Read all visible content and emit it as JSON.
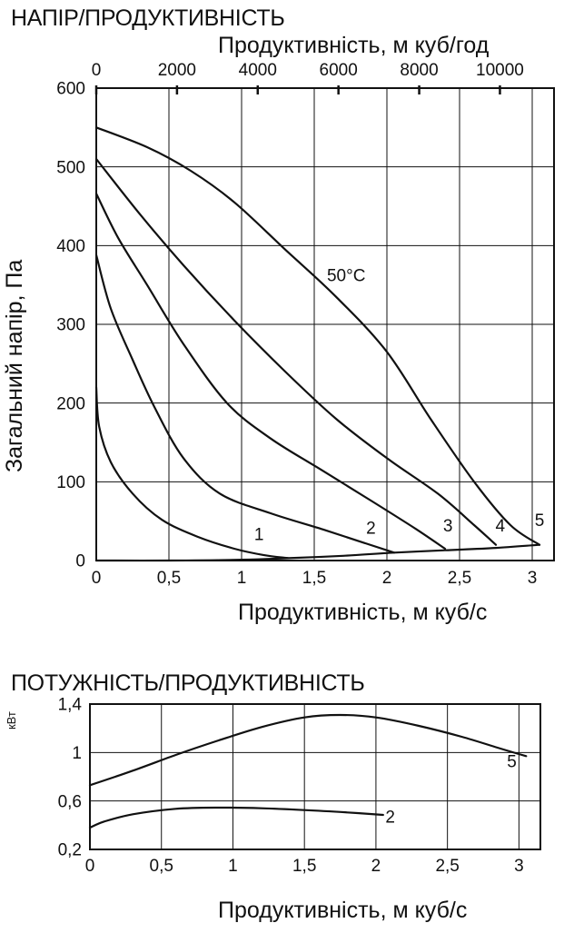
{
  "chart_data": [
    {
      "type": "line",
      "title": "НАПІР/ПРОДУКТИВНІСТЬ",
      "xlabel": "Продуктивність, м куб/с",
      "ylabel": "Загальний напір, Па",
      "x2label": "Продуктивність, м куб/год",
      "xlim": [
        0,
        3.15
      ],
      "ylim": [
        0,
        600
      ],
      "x2lim": [
        0,
        11340
      ],
      "xticks": [
        {
          "v": 0,
          "label": "0"
        },
        {
          "v": 0.5,
          "label": "0,5"
        },
        {
          "v": 1,
          "label": "1"
        },
        {
          "v": 1.5,
          "label": "1,5"
        },
        {
          "v": 2,
          "label": "2"
        },
        {
          "v": 2.5,
          "label": "2,5"
        },
        {
          "v": 3,
          "label": "3"
        }
      ],
      "x2ticks": [
        {
          "v": 0,
          "label": "0"
        },
        {
          "v": 2000,
          "label": "2000"
        },
        {
          "v": 4000,
          "label": "4000"
        },
        {
          "v": 6000,
          "label": "6000"
        },
        {
          "v": 8000,
          "label": "8000"
        },
        {
          "v": 10000,
          "label": "10000"
        }
      ],
      "yticks": [
        {
          "v": 0,
          "label": "0"
        },
        {
          "v": 100,
          "label": "100"
        },
        {
          "v": 200,
          "label": "200"
        },
        {
          "v": 300,
          "label": "300"
        },
        {
          "v": 400,
          "label": "400"
        },
        {
          "v": 500,
          "label": "500"
        },
        {
          "v": 600,
          "label": "600"
        }
      ],
      "grid": true,
      "series": [
        {
          "name": "1",
          "x": [
            0,
            0.02,
            0.1,
            0.25,
            0.45,
            0.7,
            0.95,
            1.15,
            1.32
          ],
          "y": [
            220,
            170,
            125,
            85,
            52,
            30,
            15,
            7,
            3
          ]
        },
        {
          "name": "2",
          "x": [
            0,
            0.1,
            0.25,
            0.4,
            0.6,
            0.85,
            1.2,
            1.55,
            1.85,
            2.05
          ],
          "y": [
            388,
            320,
            255,
            195,
            130,
            85,
            60,
            40,
            22,
            10
          ]
        },
        {
          "name": "3",
          "x": [
            0,
            0.15,
            0.35,
            0.6,
            0.9,
            1.2,
            1.55,
            1.9,
            2.2,
            2.4
          ],
          "y": [
            466,
            410,
            350,
            275,
            200,
            155,
            115,
            75,
            40,
            15
          ]
        },
        {
          "name": "4",
          "x": [
            0,
            0.3,
            0.6,
            0.95,
            1.3,
            1.65,
            2.0,
            2.35,
            2.6,
            2.72,
            2.75
          ],
          "y": [
            510,
            440,
            375,
            305,
            240,
            180,
            130,
            85,
            45,
            25,
            20
          ]
        },
        {
          "name": "5",
          "x": [
            0,
            0.35,
            0.65,
            0.95,
            1.3,
            1.65,
            2.0,
            2.3,
            2.6,
            2.85,
            3.05
          ],
          "y": [
            550,
            525,
            495,
            455,
            395,
            335,
            265,
            180,
            100,
            45,
            20
          ]
        },
        {
          "name": "",
          "x": [
            0,
            0.5,
            1.0,
            1.32,
            1.7,
            2.05,
            2.4,
            2.75,
            3.05
          ],
          "y": [
            0,
            0,
            1,
            3,
            6,
            10,
            13,
            16,
            20
          ]
        }
      ],
      "series_labels": [
        {
          "series": "1",
          "text": "1",
          "x": 1.12,
          "y": 26
        },
        {
          "series": "2",
          "text": "2",
          "x": 1.89,
          "y": 34
        },
        {
          "series": "3",
          "text": "3",
          "x": 2.42,
          "y": 37
        },
        {
          "series": "4",
          "text": "4",
          "x": 2.78,
          "y": 37
        },
        {
          "series": "5",
          "text": "5",
          "x": 3.05,
          "y": 44
        }
      ],
      "annotations": [
        {
          "text": "50°C",
          "x": 1.72,
          "y": 355
        }
      ]
    },
    {
      "type": "line",
      "title": "ПОТУЖНІСТЬ/ПРОДУКТИВНІСТЬ",
      "xlabel": "Продуктивність, м куб/с",
      "ylabel": "кВт",
      "xlim": [
        0,
        3.15
      ],
      "ylim": [
        0.2,
        1.4
      ],
      "xticks": [
        {
          "v": 0,
          "label": "0"
        },
        {
          "v": 0.5,
          "label": "0,5"
        },
        {
          "v": 1,
          "label": "1"
        },
        {
          "v": 1.5,
          "label": "1,5"
        },
        {
          "v": 2,
          "label": "2"
        },
        {
          "v": 2.5,
          "label": "2,5"
        },
        {
          "v": 3,
          "label": "3"
        }
      ],
      "yticks": [
        {
          "v": 0.2,
          "label": "0,2"
        },
        {
          "v": 0.6,
          "label": "0,6"
        },
        {
          "v": 1.0,
          "label": "1"
        },
        {
          "v": 1.4,
          "label": "1,4"
        }
      ],
      "grid": true,
      "series": [
        {
          "name": "2",
          "x": [
            0,
            0.1,
            0.3,
            0.6,
            0.9,
            1.2,
            1.5,
            1.8,
            2.05
          ],
          "y": [
            0.38,
            0.43,
            0.49,
            0.535,
            0.545,
            0.54,
            0.525,
            0.505,
            0.485
          ]
        },
        {
          "name": "5",
          "x": [
            0,
            0.3,
            0.6,
            0.9,
            1.2,
            1.5,
            1.75,
            2.0,
            2.3,
            2.6,
            2.85,
            3.05
          ],
          "y": [
            0.73,
            0.85,
            0.98,
            1.1,
            1.21,
            1.29,
            1.31,
            1.29,
            1.22,
            1.13,
            1.04,
            0.97
          ]
        }
      ],
      "series_labels": [
        {
          "series": "2",
          "text": "2",
          "x": 2.1,
          "y": 0.42
        },
        {
          "series": "5",
          "text": "5",
          "x": 2.95,
          "y": 0.88
        }
      ]
    }
  ]
}
